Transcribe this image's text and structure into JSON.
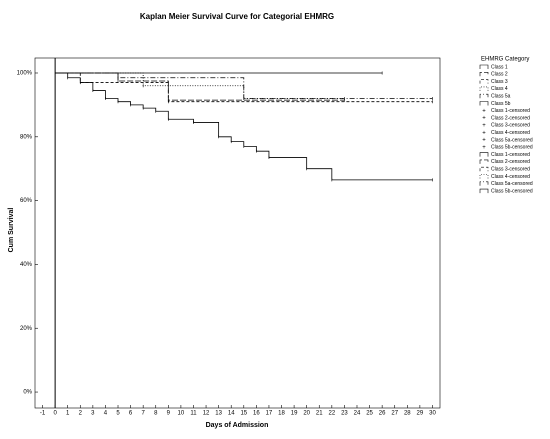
{
  "chart_data": {
    "type": "step",
    "title": "Kaplan Meier Survival Curve for Categorial EHMRG",
    "x_label": "Days of Admission",
    "y_label": "Cum Survival",
    "legend_title": "EHMRG Category",
    "xlim": [
      -1.6,
      30.6
    ],
    "ylim": [
      -5,
      104.7
    ],
    "xticks": [
      -1,
      0,
      1,
      2,
      3,
      4,
      5,
      6,
      7,
      8,
      9,
      10,
      11,
      12,
      13,
      14,
      15,
      16,
      17,
      18,
      19,
      20,
      21,
      22,
      23,
      24,
      25,
      26,
      27,
      28,
      29,
      30
    ],
    "yticks": [
      {
        "value": 0,
        "label": "0%"
      },
      {
        "value": 20,
        "label": "20%"
      },
      {
        "value": 40,
        "label": "40%"
      },
      {
        "value": 60,
        "label": "60%"
      },
      {
        "value": 80,
        "label": "80%"
      },
      {
        "value": 100,
        "label": "100%"
      }
    ],
    "series": [
      {
        "name": "Class 1",
        "color": "#000000",
        "dash": "none",
        "x": [
          0,
          26
        ],
        "values": [
          100,
          100
        ]
      },
      {
        "name": "Class 2",
        "color": "#000000",
        "dash": "6 2",
        "x": [
          0,
          5,
          9,
          23
        ],
        "values": [
          100,
          97.5,
          91.5,
          91.5
        ]
      },
      {
        "name": "Class 3",
        "color": "#000000",
        "dash": "3 2",
        "x": [
          0,
          2,
          9,
          30
        ],
        "values": [
          100,
          97,
          91,
          91
        ]
      },
      {
        "name": "Class 4",
        "color": "#000000",
        "dash": "1 1.5",
        "x": [
          0,
          7,
          15,
          23
        ],
        "values": [
          100,
          96,
          92,
          92
        ]
      },
      {
        "name": "Class 5a",
        "color": "#000000",
        "dash": "5 2 1 2",
        "x": [
          0,
          5,
          15,
          30
        ],
        "values": [
          100,
          98.5,
          92,
          92
        ]
      },
      {
        "name": "Class 5b",
        "color": "#000000",
        "dash": "none",
        "x": [
          0,
          1,
          2,
          3,
          4,
          5,
          6,
          7,
          8,
          9,
          11,
          13,
          14,
          15,
          16,
          17,
          20,
          22,
          30
        ],
        "values": [
          100,
          98.5,
          97,
          94.5,
          92,
          91,
          90,
          89,
          88,
          85.5,
          84.5,
          80,
          78.5,
          77,
          75.5,
          73.5,
          70,
          66.5,
          66.5
        ]
      }
    ],
    "censored_legend": [
      "Class 1-censored",
      "Class 2-censored",
      "Class 3-censored",
      "Class 4-censored",
      "Class 5a-censored",
      "Class 5b-censored"
    ],
    "legend_repeat": [
      "Class 1-censored",
      "Class 2-censored",
      "Class 3-censored",
      "Class 4-censored",
      "Class 5a-censored",
      "Class 5b-censored"
    ]
  }
}
